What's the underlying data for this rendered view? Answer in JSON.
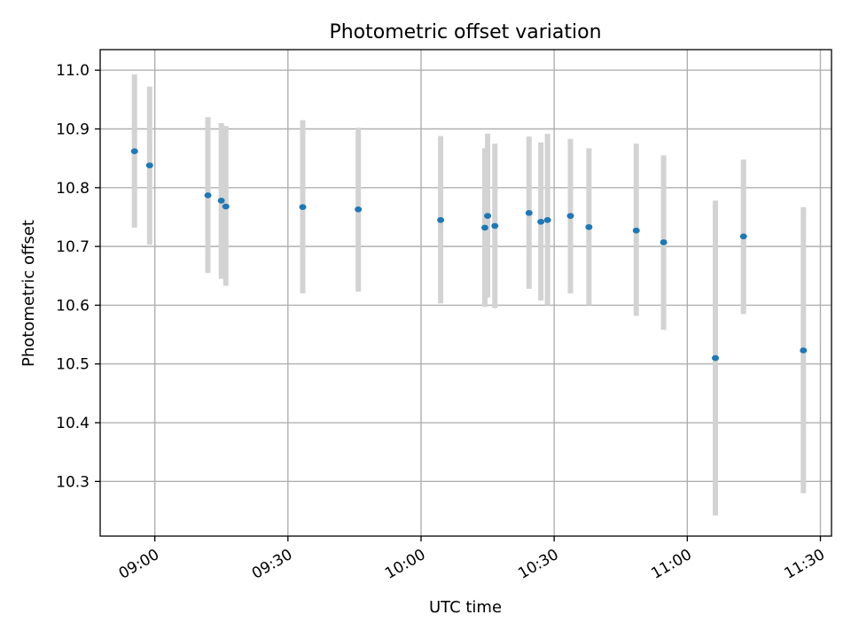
{
  "chart_data": {
    "type": "scatter",
    "title": "Photometric offset variation",
    "xlabel": "UTC time",
    "ylabel": "Photometric offset",
    "x_unit": "time of day (HH:MM)",
    "xlim": [
      "08:47:41",
      "11:32:30"
    ],
    "ylim": [
      10.207,
      11.035
    ],
    "xticks": [
      "09:00",
      "09:30",
      "10:00",
      "10:30",
      "11:00",
      "11:30"
    ],
    "yticks": [
      10.3,
      10.4,
      10.5,
      10.6,
      10.7,
      10.8,
      10.9,
      11.0
    ],
    "xtick_rotation_deg": 30,
    "grid": true,
    "legend": "none",
    "colors": {
      "point": "#1f77b4",
      "errorbar": "#d3d3d3",
      "grid": "#b0b0b0"
    },
    "series": [
      {
        "points": [
          {
            "t": "08:55:25",
            "y": 10.862,
            "lo": 10.732,
            "hi": 10.993
          },
          {
            "t": "08:58:50",
            "y": 10.838,
            "lo": 10.703,
            "hi": 10.972
          },
          {
            "t": "09:11:58",
            "y": 10.787,
            "lo": 10.655,
            "hi": 10.92
          },
          {
            "t": "09:14:59",
            "y": 10.778,
            "lo": 10.645,
            "hi": 10.91
          },
          {
            "t": "09:16:00",
            "y": 10.768,
            "lo": 10.633,
            "hi": 10.905
          },
          {
            "t": "09:33:20",
            "y": 10.767,
            "lo": 10.62,
            "hi": 10.915
          },
          {
            "t": "09:45:51",
            "y": 10.763,
            "lo": 10.623,
            "hi": 10.902
          },
          {
            "t": "10:04:25",
            "y": 10.745,
            "lo": 10.603,
            "hi": 10.888
          },
          {
            "t": "10:14:23",
            "y": 10.732,
            "lo": 10.597,
            "hi": 10.867
          },
          {
            "t": "10:15:00",
            "y": 10.752,
            "lo": 10.613,
            "hi": 10.892
          },
          {
            "t": "10:16:38",
            "y": 10.735,
            "lo": 10.595,
            "hi": 10.875
          },
          {
            "t": "10:24:20",
            "y": 10.757,
            "lo": 10.628,
            "hi": 10.887
          },
          {
            "t": "10:27:00",
            "y": 10.742,
            "lo": 10.608,
            "hi": 10.877
          },
          {
            "t": "10:28:30",
            "y": 10.745,
            "lo": 10.6,
            "hi": 10.892
          },
          {
            "t": "10:33:40",
            "y": 10.752,
            "lo": 10.62,
            "hi": 10.883
          },
          {
            "t": "10:37:50",
            "y": 10.733,
            "lo": 10.6,
            "hi": 10.867
          },
          {
            "t": "10:48:30",
            "y": 10.727,
            "lo": 10.582,
            "hi": 10.875
          },
          {
            "t": "10:54:40",
            "y": 10.707,
            "lo": 10.558,
            "hi": 10.855
          },
          {
            "t": "11:06:20",
            "y": 10.51,
            "lo": 10.242,
            "hi": 10.778
          },
          {
            "t": "11:12:40",
            "y": 10.717,
            "lo": 10.585,
            "hi": 10.848
          },
          {
            "t": "11:26:10",
            "y": 10.523,
            "lo": 10.28,
            "hi": 10.767
          }
        ]
      }
    ]
  }
}
